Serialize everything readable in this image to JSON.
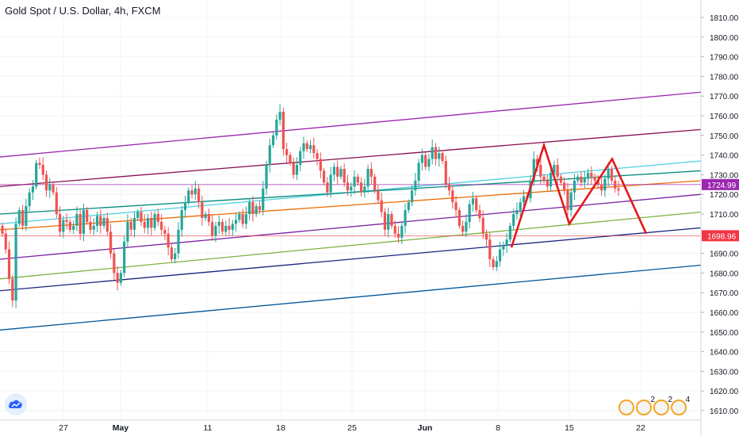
{
  "header": {
    "title": "Gold Spot / U.S. Dollar, 4h, FXCM"
  },
  "colors": {
    "bull": "#26a69a",
    "bear": "#ef5350",
    "pattern": "#e3191c",
    "price_tag_purple": "#9c27b0",
    "price_tag_red": "#f23645"
  },
  "footer": {
    "event_counts": [
      "2",
      "2",
      "4"
    ]
  },
  "icons": [
    "tradingview-logo-icon",
    "us-flag-event-icon"
  ],
  "chart_data": {
    "type": "candlestick",
    "title": "Gold Spot / U.S. Dollar, 4h, FXCM",
    "ylim": [
      1602,
      1822
    ],
    "y_ticks": [
      1610,
      1620,
      1630,
      1640,
      1650,
      1660,
      1670,
      1680,
      1690,
      1700,
      1710,
      1720,
      1730,
      1740,
      1750,
      1760,
      1770,
      1780,
      1790,
      1800,
      1810
    ],
    "x_ticks": [
      "27",
      "May",
      "11",
      "18",
      "25",
      "Jun",
      "8",
      "15",
      "22"
    ],
    "price_labels": [
      {
        "value": 1724.99,
        "label": "1724.99",
        "color": "#9c27b0"
      },
      {
        "value": 1698.96,
        "label": "1698.96",
        "color": "#f23645"
      }
    ],
    "channel_lines": [
      {
        "color": "#9c27b0",
        "start": 1739,
        "end": 1772
      },
      {
        "color": "#880e4f",
        "start": 1724,
        "end": 1753
      },
      {
        "color": "#4dd0e1",
        "start": 1705,
        "end": 1737
      },
      {
        "color": "#00897b",
        "start": 1710,
        "end": 1732
      },
      {
        "color": "#ef6c00",
        "start": 1702,
        "end": 1727
      },
      {
        "color": "#7b1fa2",
        "start": 1687,
        "end": 1720
      },
      {
        "color": "#7cb342",
        "start": 1677,
        "end": 1711
      },
      {
        "color": "#1a237e",
        "start": 1671,
        "end": 1703
      },
      {
        "color": "#01579b",
        "start": 1651,
        "end": 1684
      }
    ],
    "pattern_points": [
      {
        "x": "8 Jun",
        "y": 1693
      },
      {
        "x": "11 Jun",
        "y": 1745
      },
      {
        "x": "15 Jun",
        "y": 1705
      },
      {
        "x": "19 Jun",
        "y": 1738
      },
      {
        "x": "22 Jun",
        "y": 1700
      }
    ],
    "close_series": [
      1700,
      1692,
      1677,
      1666,
      1705,
      1712,
      1704,
      1714,
      1721,
      1724,
      1736,
      1735,
      1730,
      1722,
      1725,
      1721,
      1710,
      1701,
      1707,
      1706,
      1702,
      1704,
      1710,
      1700,
      1712,
      1706,
      1702,
      1704,
      1709,
      1704,
      1708,
      1701,
      1690,
      1680,
      1675,
      1680,
      1696,
      1706,
      1702,
      1708,
      1711,
      1706,
      1703,
      1708,
      1703,
      1710,
      1706,
      1702,
      1700,
      1693,
      1687,
      1690,
      1702,
      1712,
      1716,
      1722,
      1720,
      1723,
      1716,
      1708,
      1710,
      1706,
      1699,
      1704,
      1706,
      1701,
      1704,
      1702,
      1705,
      1707,
      1710,
      1705,
      1710,
      1716,
      1710,
      1714,
      1712,
      1723,
      1735,
      1745,
      1750,
      1758,
      1762,
      1743,
      1740,
      1736,
      1730,
      1735,
      1742,
      1746,
      1743,
      1745,
      1741,
      1738,
      1732,
      1726,
      1721,
      1730,
      1734,
      1729,
      1733,
      1726,
      1722,
      1724,
      1729,
      1726,
      1721,
      1724,
      1733,
      1729,
      1722,
      1717,
      1711,
      1702,
      1710,
      1704,
      1700,
      1698,
      1704,
      1712,
      1716,
      1722,
      1727,
      1736,
      1740,
      1734,
      1738,
      1744,
      1738,
      1741,
      1737,
      1725,
      1722,
      1716,
      1712,
      1704,
      1701,
      1706,
      1715,
      1718,
      1712,
      1708,
      1700,
      1697,
      1687,
      1683,
      1686,
      1692,
      1694,
      1697,
      1704,
      1710,
      1712,
      1716,
      1719,
      1718,
      1727,
      1738,
      1735,
      1729,
      1727,
      1724,
      1731,
      1735,
      1729,
      1726,
      1722,
      1712,
      1721,
      1727,
      1729,
      1726,
      1728,
      1731,
      1729,
      1727,
      1725,
      1722,
      1728,
      1733,
      1727,
      1723,
      1722
    ]
  }
}
